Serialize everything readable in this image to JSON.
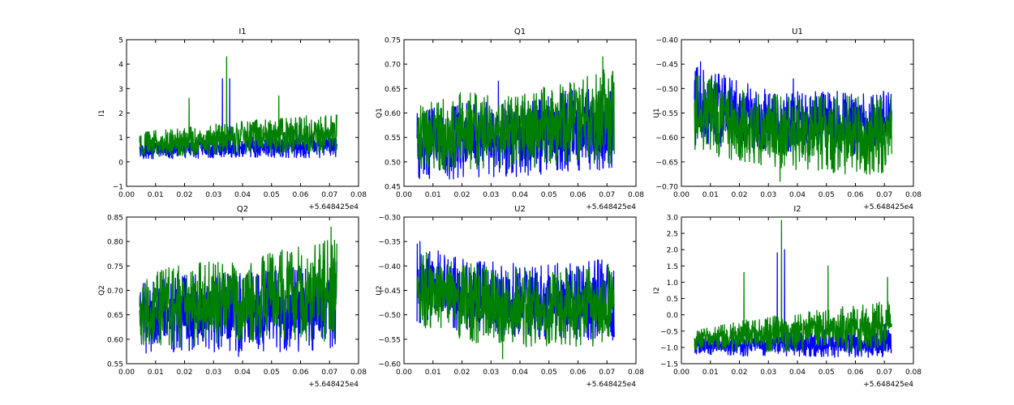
{
  "chart_data": [
    {
      "type": "line",
      "title": "I1",
      "ylabel": "I1",
      "ylim": [
        -1,
        5
      ],
      "yticks": [
        -1,
        0,
        1,
        2,
        3,
        4,
        5
      ],
      "xlim": [
        0,
        0.08
      ],
      "xticks": [
        "0.00",
        "0.01",
        "0.02",
        "0.03",
        "0.04",
        "0.05",
        "0.06",
        "0.07",
        "0.08"
      ],
      "x_offset_label": "+5.648425e4",
      "x_range": [
        0.0045,
        0.0725
      ],
      "series": [
        {
          "color": "#0000ff",
          "lo": [
            0.15,
            0.15,
            0.2,
            0.2,
            0.2
          ],
          "hi": [
            0.8,
            0.9,
            1.0,
            1.1,
            1.2
          ],
          "spikes": [
            [
              0.033,
              3.4
            ],
            [
              0.0355,
              3.4
            ]
          ]
        },
        {
          "color": "#008000",
          "lo": [
            0.2,
            0.3,
            0.35,
            0.4,
            0.4
          ],
          "hi": [
            1.2,
            1.4,
            1.6,
            1.8,
            1.9
          ],
          "spikes": [
            [
              0.0345,
              4.3
            ],
            [
              0.0215,
              2.6
            ],
            [
              0.0525,
              2.7
            ]
          ]
        }
      ]
    },
    {
      "type": "line",
      "title": "Q1",
      "ylabel": "Q1",
      "ylim": [
        0.45,
        0.75
      ],
      "yticks": [
        0.45,
        0.5,
        0.55,
        0.6,
        0.65,
        0.7,
        0.75
      ],
      "xlim": [
        0,
        0.08
      ],
      "xticks": [
        "0.00",
        "0.01",
        "0.02",
        "0.03",
        "0.04",
        "0.05",
        "0.06",
        "0.07",
        "0.08"
      ],
      "x_offset_label": "+5.648425e4",
      "x_range": [
        0.0045,
        0.0725
      ],
      "series": [
        {
          "color": "#0000ff",
          "lo": [
            0.47,
            0.47,
            0.475,
            0.485,
            0.49
          ],
          "hi": [
            0.6,
            0.62,
            0.62,
            0.64,
            0.65
          ],
          "spikes": [
            [
              0.0325,
              0.665
            ]
          ]
        },
        {
          "color": "#008000",
          "lo": [
            0.485,
            0.49,
            0.49,
            0.5,
            0.5
          ],
          "hi": [
            0.61,
            0.64,
            0.63,
            0.66,
            0.69
          ],
          "spikes": [
            [
              0.0685,
              0.715
            ]
          ]
        }
      ]
    },
    {
      "type": "line",
      "title": "U1",
      "ylabel": "U1",
      "ylim": [
        -0.7,
        -0.4
      ],
      "yticks": [
        -0.7,
        -0.65,
        -0.6,
        -0.55,
        -0.5,
        -0.45,
        -0.4
      ],
      "xlim": [
        0,
        0.08
      ],
      "xticks": [
        "0.00",
        "0.01",
        "0.02",
        "0.03",
        "0.04",
        "0.05",
        "0.06",
        "0.07",
        "0.08"
      ],
      "x_offset_label": "+5.648425e4",
      "x_range": [
        0.0045,
        0.0725
      ],
      "series": [
        {
          "color": "#0000ff",
          "lo": [
            -0.61,
            -0.62,
            -0.63,
            -0.63,
            -0.63
          ],
          "hi": [
            -0.46,
            -0.49,
            -0.51,
            -0.51,
            -0.51
          ],
          "spikes": [
            [
              0.0065,
              -0.445
            ],
            [
              0.0385,
              -0.48
            ]
          ]
        },
        {
          "color": "#008000",
          "lo": [
            -0.62,
            -0.65,
            -0.66,
            -0.67,
            -0.67
          ],
          "hi": [
            -0.47,
            -0.51,
            -0.52,
            -0.52,
            -0.52
          ],
          "spikes": [
            [
              0.034,
              -0.69
            ]
          ]
        }
      ]
    },
    {
      "type": "line",
      "title": "Q2",
      "ylabel": "Q2",
      "ylim": [
        0.55,
        0.85
      ],
      "yticks": [
        0.55,
        0.6,
        0.65,
        0.7,
        0.75,
        0.8,
        0.85
      ],
      "xlim": [
        0,
        0.08
      ],
      "xticks": [
        "0.00",
        "0.01",
        "0.02",
        "0.03",
        "0.04",
        "0.05",
        "0.06",
        "0.07",
        "0.08"
      ],
      "x_offset_label": "+5.648425e4",
      "x_range": [
        0.0045,
        0.0725
      ],
      "series": [
        {
          "color": "#0000ff",
          "lo": [
            0.575,
            0.58,
            0.58,
            0.58,
            0.585
          ],
          "hi": [
            0.71,
            0.73,
            0.73,
            0.74,
            0.76
          ],
          "spikes": [
            [
              0.0385,
              0.565
            ]
          ]
        },
        {
          "color": "#008000",
          "lo": [
            0.59,
            0.59,
            0.6,
            0.6,
            0.6
          ],
          "hi": [
            0.72,
            0.76,
            0.75,
            0.78,
            0.8
          ],
          "spikes": [
            [
              0.0705,
              0.83
            ]
          ]
        }
      ]
    },
    {
      "type": "line",
      "title": "U2",
      "ylabel": "U2",
      "ylim": [
        -0.6,
        -0.3
      ],
      "yticks": [
        -0.6,
        -0.55,
        -0.5,
        -0.45,
        -0.4,
        -0.35,
        -0.3
      ],
      "xlim": [
        0,
        0.08
      ],
      "xticks": [
        "0.00",
        "0.01",
        "0.02",
        "0.03",
        "0.04",
        "0.05",
        "0.06",
        "0.07",
        "0.08"
      ],
      "x_offset_label": "+5.648425e4",
      "x_range": [
        0.0045,
        0.0725
      ],
      "series": [
        {
          "color": "#0000ff",
          "lo": [
            -0.51,
            -0.53,
            -0.54,
            -0.55,
            -0.55
          ],
          "hi": [
            -0.36,
            -0.39,
            -0.4,
            -0.4,
            -0.39
          ],
          "spikes": [
            [
              0.0055,
              -0.35
            ]
          ]
        },
        {
          "color": "#008000",
          "lo": [
            -0.52,
            -0.55,
            -0.56,
            -0.56,
            -0.56
          ],
          "hi": [
            -0.37,
            -0.4,
            -0.41,
            -0.41,
            -0.4
          ],
          "spikes": [
            [
              0.034,
              -0.59
            ]
          ]
        }
      ]
    },
    {
      "type": "line",
      "title": "I2",
      "ylabel": "I2",
      "ylim": [
        -1.5,
        3.0
      ],
      "yticks": [
        -1.5,
        -1.0,
        -0.5,
        0.0,
        0.5,
        1.0,
        1.5,
        2.0,
        2.5,
        3.0
      ],
      "xlim": [
        0,
        0.08
      ],
      "xticks": [
        "0.00",
        "0.01",
        "0.02",
        "0.03",
        "0.04",
        "0.05",
        "0.06",
        "0.07",
        "0.08"
      ],
      "x_offset_label": "+5.648425e4",
      "x_range": [
        0.0045,
        0.0725
      ],
      "series": [
        {
          "color": "#0000ff",
          "lo": [
            -1.2,
            -1.25,
            -1.25,
            -1.3,
            -1.25
          ],
          "hi": [
            -0.8,
            -0.6,
            -0.5,
            -0.4,
            -0.3
          ],
          "spikes": [
            [
              0.033,
              1.9
            ],
            [
              0.0355,
              2.0
            ]
          ]
        },
        {
          "color": "#008000",
          "lo": [
            -1.05,
            -1.1,
            -1.1,
            -1.1,
            -1.05
          ],
          "hi": [
            -0.5,
            -0.2,
            0.0,
            0.2,
            0.4
          ],
          "spikes": [
            [
              0.0345,
              2.9
            ],
            [
              0.0215,
              1.3
            ],
            [
              0.0505,
              1.5
            ],
            [
              0.071,
              1.15
            ]
          ]
        }
      ]
    }
  ]
}
